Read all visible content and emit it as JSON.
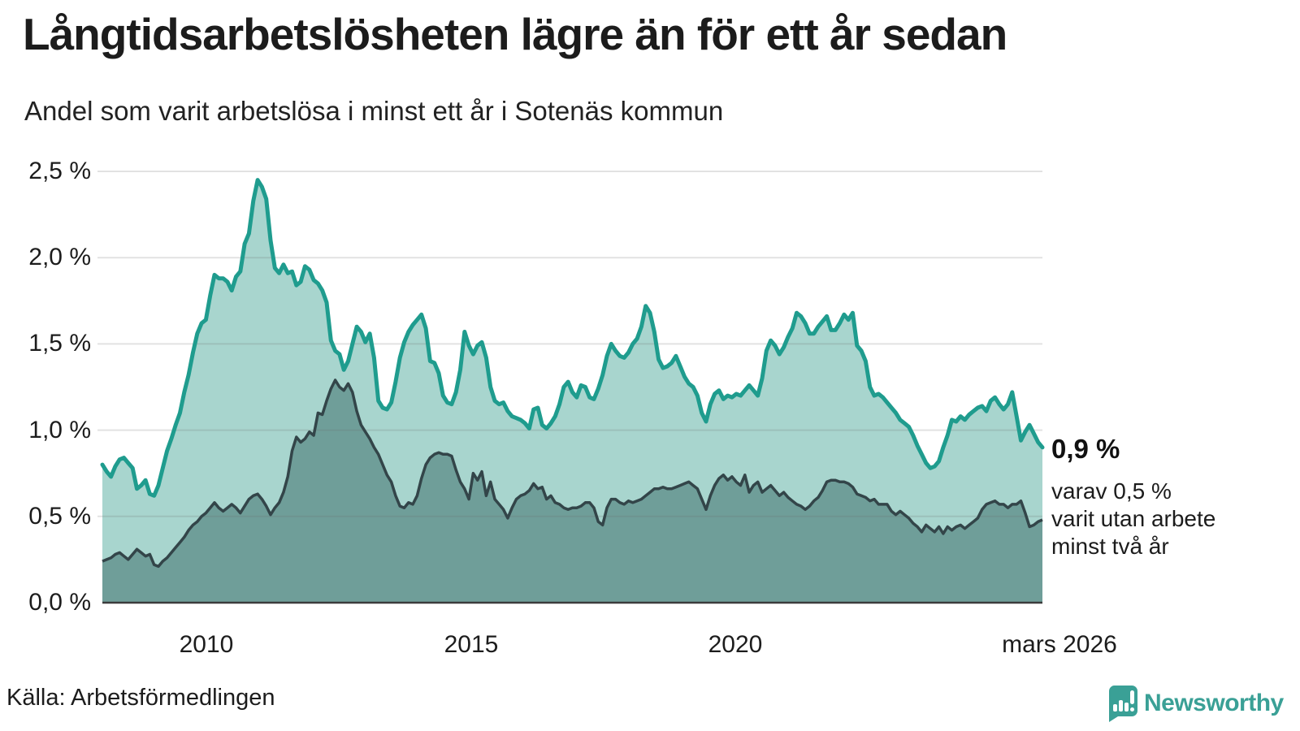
{
  "header": {
    "title": "Långtidsarbetslösheten lägre än för ett år sedan",
    "subtitle": "Andel som varit arbetslösa i minst ett år i Sotenäs kommun"
  },
  "axes": {
    "y_ticks": [
      "2,5 %",
      "2,0 %",
      "1,5 %",
      "1,0 %",
      "0,5 %",
      "0,0 %"
    ],
    "x_ticks": [
      "2010",
      "2015",
      "2020",
      "mars 2026"
    ]
  },
  "annotation": {
    "value_label": "0,9 %",
    "sub_label": "varav 0,5 %\nvarit utan arbete\nminst två år"
  },
  "footer": {
    "source": "Källa: Arbetsförmedlingen",
    "logo_text": "Newsworthy"
  },
  "colors": {
    "accent_teal": "#1f9c8e",
    "light_fill": "#a8d5ce",
    "dark_line": "#334549",
    "dark_fill": "#6f9e99",
    "gridline_overlay": "rgba(110,110,110,0.20)",
    "baseline": "#3c3c3c",
    "logo_teal": "#3aa096",
    "text": "#1c1c1c"
  },
  "chart_data": {
    "type": "area",
    "title": "Långtidsarbetslösheten lägre än för ett år sedan",
    "subtitle": "Andel som varit arbetslösa i minst ett år i Sotenäs kommun",
    "unit": "%",
    "frequency": "monthly",
    "start": "2008-01",
    "end": "2026-03",
    "ylim": [
      0,
      2.5
    ],
    "grid_values": [
      0.5,
      1.0,
      1.5,
      2.0,
      2.5
    ],
    "x_tick_labels": [
      "2010",
      "2015",
      "2020",
      "mars 2026"
    ],
    "legend_position": "none",
    "end_labels": {
      "total": "0,9 %",
      "two_years": "0,5 %"
    },
    "series": [
      {
        "name": "Arbetslösa minst ett år (andel av arbetskraften)",
        "color": "#1f9c8e",
        "fill": "#a8d5ce",
        "values": [
          0.8,
          0.76,
          0.73,
          0.79,
          0.83,
          0.84,
          0.81,
          0.78,
          0.66,
          0.68,
          0.71,
          0.63,
          0.62,
          0.68,
          0.78,
          0.88,
          0.95,
          1.03,
          1.1,
          1.22,
          1.32,
          1.45,
          1.56,
          1.62,
          1.64,
          1.78,
          1.9,
          1.88,
          1.88,
          1.86,
          1.81,
          1.89,
          1.92,
          2.08,
          2.14,
          2.33,
          2.45,
          2.41,
          2.34,
          2.1,
          1.94,
          1.91,
          1.96,
          1.91,
          1.92,
          1.84,
          1.86,
          1.95,
          1.93,
          1.87,
          1.85,
          1.81,
          1.74,
          1.52,
          1.46,
          1.44,
          1.35,
          1.4,
          1.5,
          1.6,
          1.57,
          1.51,
          1.56,
          1.42,
          1.17,
          1.13,
          1.12,
          1.16,
          1.28,
          1.42,
          1.51,
          1.57,
          1.61,
          1.64,
          1.67,
          1.59,
          1.4,
          1.39,
          1.33,
          1.2,
          1.16,
          1.15,
          1.22,
          1.35,
          1.57,
          1.49,
          1.44,
          1.49,
          1.51,
          1.42,
          1.25,
          1.17,
          1.15,
          1.16,
          1.11,
          1.08,
          1.07,
          1.06,
          1.04,
          1.01,
          1.12,
          1.13,
          1.03,
          1.01,
          1.04,
          1.08,
          1.15,
          1.25,
          1.28,
          1.22,
          1.19,
          1.26,
          1.25,
          1.19,
          1.18,
          1.24,
          1.32,
          1.43,
          1.5,
          1.46,
          1.43,
          1.42,
          1.45,
          1.5,
          1.53,
          1.6,
          1.72,
          1.68,
          1.57,
          1.41,
          1.36,
          1.37,
          1.39,
          1.43,
          1.37,
          1.31,
          1.27,
          1.25,
          1.2,
          1.1,
          1.05,
          1.15,
          1.21,
          1.23,
          1.18,
          1.2,
          1.19,
          1.21,
          1.2,
          1.23,
          1.26,
          1.23,
          1.2,
          1.3,
          1.46,
          1.52,
          1.49,
          1.44,
          1.48,
          1.54,
          1.59,
          1.68,
          1.66,
          1.62,
          1.56,
          1.56,
          1.6,
          1.63,
          1.66,
          1.58,
          1.58,
          1.62,
          1.67,
          1.64,
          1.68,
          1.49,
          1.46,
          1.4,
          1.25,
          1.2,
          1.21,
          1.19,
          1.16,
          1.13,
          1.1,
          1.06,
          1.04,
          1.02,
          0.97,
          0.91,
          0.86,
          0.81,
          0.78,
          0.79,
          0.82,
          0.9,
          0.97,
          1.06,
          1.05,
          1.08,
          1.06,
          1.09,
          1.11,
          1.13,
          1.14,
          1.11,
          1.17,
          1.19,
          1.15,
          1.12,
          1.15,
          1.22,
          1.08,
          0.94,
          0.99,
          1.03,
          0.98,
          0.93,
          0.9
        ]
      },
      {
        "name": "Varav utan arbete minst två år",
        "color": "#334549",
        "fill": "#6f9e99",
        "values": [
          0.24,
          0.25,
          0.26,
          0.28,
          0.29,
          0.27,
          0.25,
          0.28,
          0.31,
          0.29,
          0.27,
          0.28,
          0.22,
          0.21,
          0.24,
          0.26,
          0.29,
          0.32,
          0.35,
          0.38,
          0.42,
          0.45,
          0.47,
          0.5,
          0.52,
          0.55,
          0.58,
          0.55,
          0.53,
          0.55,
          0.57,
          0.55,
          0.52,
          0.56,
          0.6,
          0.62,
          0.63,
          0.6,
          0.56,
          0.51,
          0.55,
          0.58,
          0.64,
          0.73,
          0.88,
          0.96,
          0.93,
          0.95,
          0.99,
          0.97,
          1.1,
          1.09,
          1.17,
          1.24,
          1.29,
          1.25,
          1.23,
          1.27,
          1.22,
          1.11,
          1.03,
          0.99,
          0.95,
          0.9,
          0.86,
          0.8,
          0.74,
          0.7,
          0.62,
          0.56,
          0.55,
          0.58,
          0.57,
          0.62,
          0.72,
          0.8,
          0.84,
          0.86,
          0.87,
          0.86,
          0.86,
          0.85,
          0.77,
          0.7,
          0.66,
          0.6,
          0.75,
          0.71,
          0.76,
          0.62,
          0.7,
          0.6,
          0.57,
          0.54,
          0.49,
          0.55,
          0.6,
          0.62,
          0.63,
          0.65,
          0.69,
          0.66,
          0.67,
          0.6,
          0.62,
          0.58,
          0.57,
          0.55,
          0.54,
          0.55,
          0.55,
          0.56,
          0.58,
          0.58,
          0.55,
          0.47,
          0.45,
          0.55,
          0.6,
          0.6,
          0.58,
          0.57,
          0.59,
          0.58,
          0.59,
          0.6,
          0.62,
          0.64,
          0.66,
          0.66,
          0.67,
          0.66,
          0.66,
          0.67,
          0.68,
          0.69,
          0.7,
          0.68,
          0.66,
          0.6,
          0.54,
          0.62,
          0.68,
          0.72,
          0.74,
          0.71,
          0.73,
          0.7,
          0.68,
          0.74,
          0.64,
          0.68,
          0.7,
          0.64,
          0.66,
          0.68,
          0.65,
          0.62,
          0.64,
          0.61,
          0.59,
          0.57,
          0.56,
          0.54,
          0.56,
          0.59,
          0.61,
          0.65,
          0.7,
          0.71,
          0.71,
          0.7,
          0.7,
          0.69,
          0.67,
          0.63,
          0.62,
          0.61,
          0.59,
          0.6,
          0.57,
          0.57,
          0.57,
          0.53,
          0.51,
          0.53,
          0.51,
          0.49,
          0.46,
          0.44,
          0.41,
          0.45,
          0.43,
          0.41,
          0.44,
          0.4,
          0.44,
          0.42,
          0.44,
          0.45,
          0.43,
          0.45,
          0.47,
          0.49,
          0.54,
          0.57,
          0.58,
          0.59,
          0.57,
          0.57,
          0.55,
          0.57,
          0.57,
          0.59,
          0.52,
          0.44,
          0.45,
          0.47,
          0.48
        ]
      }
    ]
  }
}
